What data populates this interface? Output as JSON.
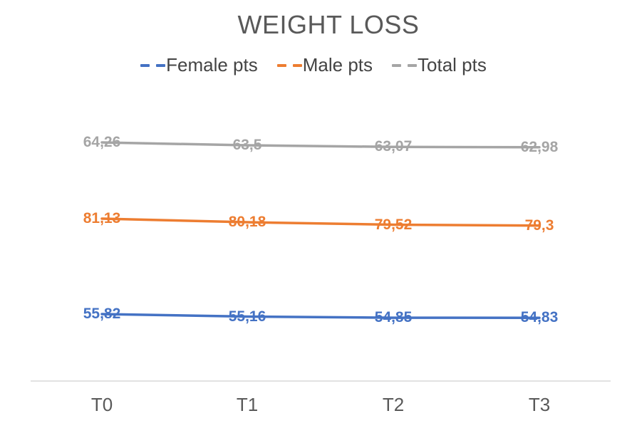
{
  "chart_data": {
    "type": "line",
    "title": "WEIGHT LOSS",
    "categories": [
      "T0",
      "T1",
      "T2",
      "T3"
    ],
    "series": [
      {
        "name": "Female pts",
        "color": "#4472C4",
        "values": [
          55.82,
          55.16,
          54.85,
          54.83
        ],
        "labels": [
          "55,82",
          "55,16",
          "54,85",
          "54,83"
        ]
      },
      {
        "name": "Male pts",
        "color": "#ED7D31",
        "values": [
          81.13,
          80.18,
          79.52,
          79.3
        ],
        "labels": [
          "81,13",
          "80,18",
          "79,52",
          "79,3"
        ]
      },
      {
        "name": "Total pts",
        "color": "#A5A5A5",
        "values": [
          64.26,
          63.5,
          63.07,
          62.98
        ],
        "labels": [
          "64,26",
          "63,5",
          "63,07",
          "62,98"
        ]
      }
    ],
    "legend_position": "top",
    "legend_marker_style": "dashed",
    "data_labels": "center",
    "decimal_separator": ",",
    "grid": false,
    "y_axis_visible": false,
    "x_axis_line_color": "#D9D9D9",
    "title_color": "#595959",
    "axis_label_color": "#595959"
  }
}
